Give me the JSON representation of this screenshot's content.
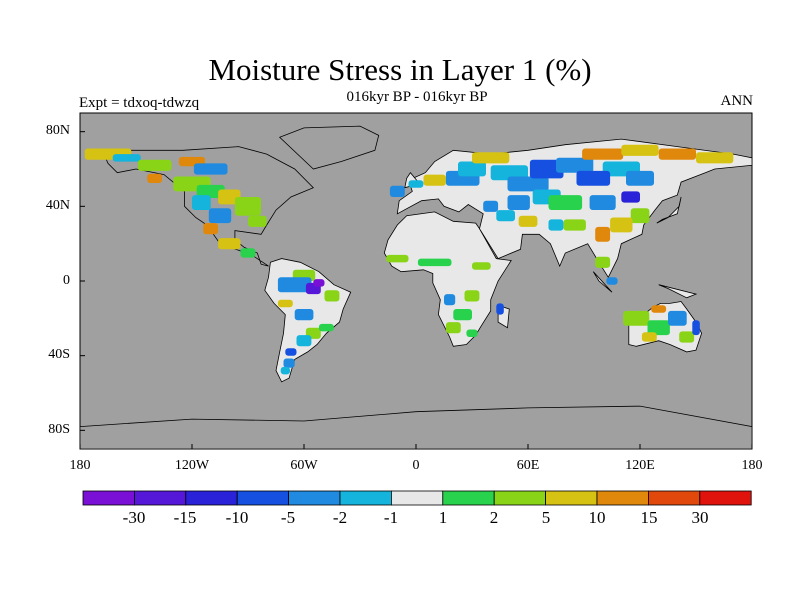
{
  "title": "Moisture Stress in Layer 1 (%)",
  "subtitle": "016kyr BP - 016kyr BP",
  "left_label": "Expt = tdxoq-tdwzq",
  "right_label": "ANN",
  "axes": {
    "y_ticks": [
      "80N",
      "40N",
      "0",
      "40S",
      "80S"
    ],
    "x_ticks": [
      "180",
      "120W",
      "60W",
      "0",
      "60E",
      "120E",
      "180"
    ]
  },
  "colors": {
    "ocean": "#a0a0a0",
    "coastline": "#000000",
    "bins": [
      "#7a10d6",
      "#5618d8",
      "#2a22d8",
      "#1550e0",
      "#1f8ae0",
      "#14b4dc",
      "#e8e8e8",
      "#28d24c",
      "#8ad418",
      "#d6c212",
      "#e0880c",
      "#e0480c",
      "#e0120c"
    ]
  },
  "colorbar": {
    "labels": [
      "-30",
      "-15",
      "-10",
      "-5",
      "-2",
      "-1",
      "1",
      "2",
      "5",
      "10",
      "15",
      "30"
    ]
  }
}
